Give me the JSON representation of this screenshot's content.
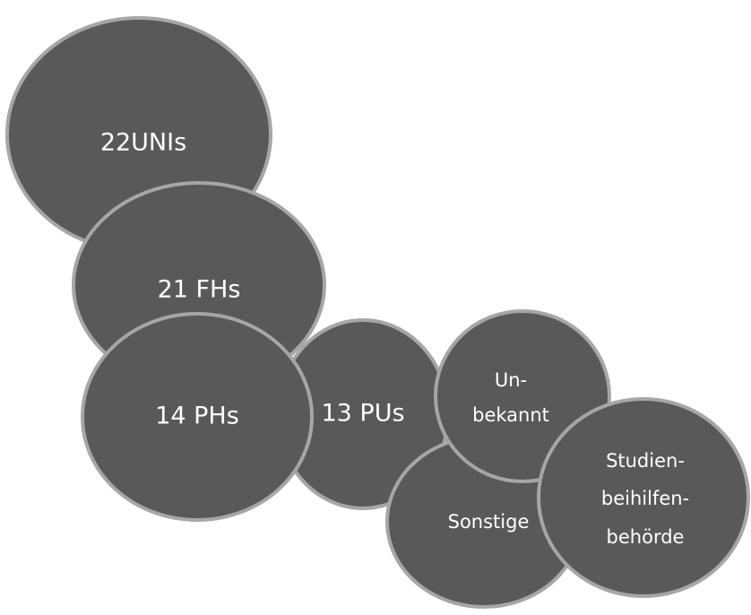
{
  "nodes": [
    {
      "lines": [
        "22UNIs"
      ]
    },
    {
      "lines": [
        "21 FHs"
      ]
    },
    {
      "lines": [
        "13 PUs"
      ]
    },
    {
      "lines": [
        "14 PHs"
      ]
    },
    {
      "lines": [
        "Sonstige"
      ]
    },
    {
      "lines": [
        "Un-",
        "bekannt"
      ]
    },
    {
      "lines": [
        "Studien-",
        "beihilfen-",
        "behörde"
      ]
    }
  ]
}
